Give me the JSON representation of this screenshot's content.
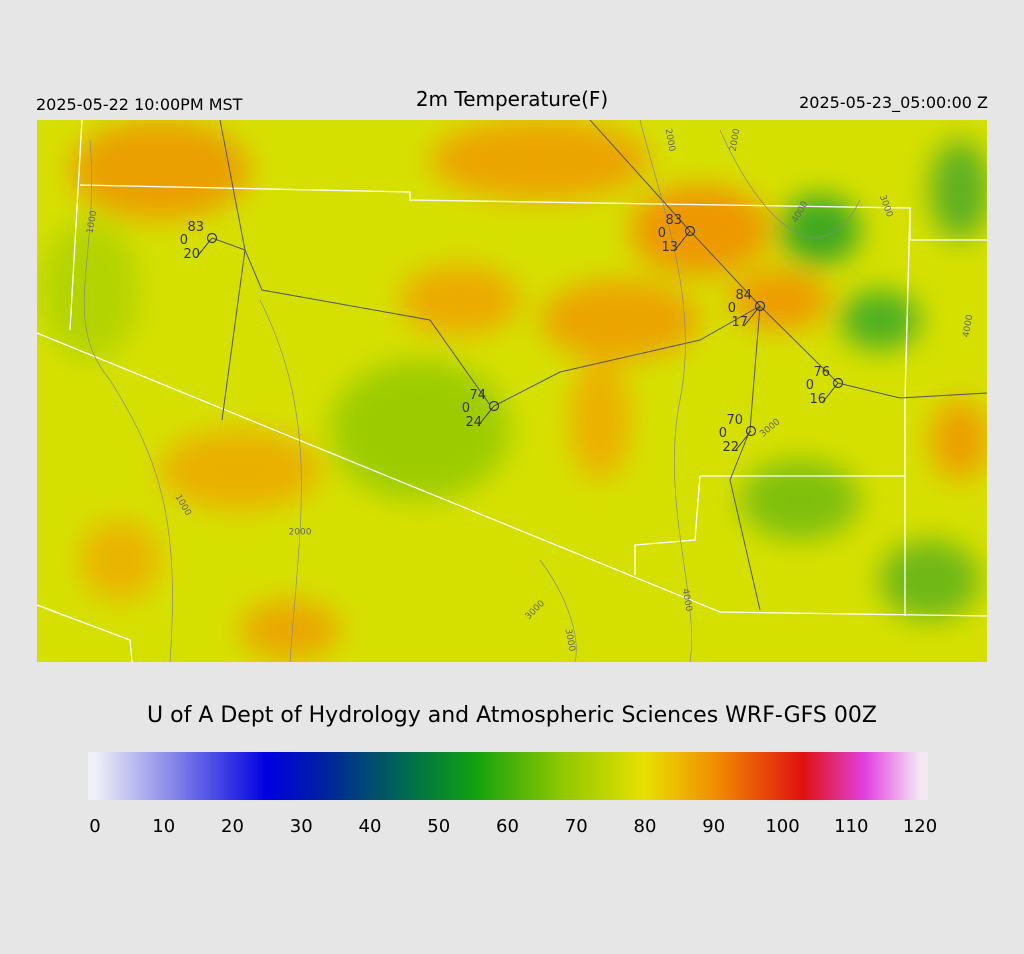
{
  "header": {
    "left": "2025-05-22 10:00PM MST",
    "title": "2m Temperature(F)",
    "right": "2025-05-23_05:00:00 Z"
  },
  "contour_labels": [
    "1000",
    "2000",
    "2000",
    "4000",
    "3000",
    "4000",
    "3000",
    "1000",
    "2000",
    "3000",
    "4000",
    "3000"
  ],
  "stations": [
    {
      "temperature": "83",
      "wind": "0",
      "dewpoint": "20"
    },
    {
      "temperature": "83",
      "wind": "0",
      "dewpoint": "13"
    },
    {
      "temperature": "84",
      "wind": "0",
      "dewpoint": "17"
    },
    {
      "temperature": "76",
      "wind": "0",
      "dewpoint": "16"
    },
    {
      "temperature": "74",
      "wind": "0",
      "dewpoint": "24"
    },
    {
      "temperature": "70",
      "wind": "0",
      "dewpoint": "22"
    }
  ],
  "credit": "U of A Dept of Hydrology and Atmospheric Sciences WRF-GFS 00Z",
  "colorbar": {
    "range": [
      0,
      120
    ],
    "ticks": [
      0,
      10,
      20,
      30,
      40,
      50,
      60,
      70,
      80,
      90,
      100,
      110,
      120
    ],
    "stops": [
      {
        "value": 0,
        "color": "#f0f0f8"
      },
      {
        "value": 12,
        "color": "#8080e8"
      },
      {
        "value": 25,
        "color": "#0000e0"
      },
      {
        "value": 33,
        "color": "#0020a0"
      },
      {
        "value": 45,
        "color": "#006a50"
      },
      {
        "value": 55,
        "color": "#10a010"
      },
      {
        "value": 68,
        "color": "#90c800"
      },
      {
        "value": 80,
        "color": "#e8e000"
      },
      {
        "value": 90,
        "color": "#f09000"
      },
      {
        "value": 103,
        "color": "#e01010"
      },
      {
        "value": 112,
        "color": "#e040e0"
      },
      {
        "value": 120,
        "color": "#f4e8f4"
      }
    ]
  }
}
